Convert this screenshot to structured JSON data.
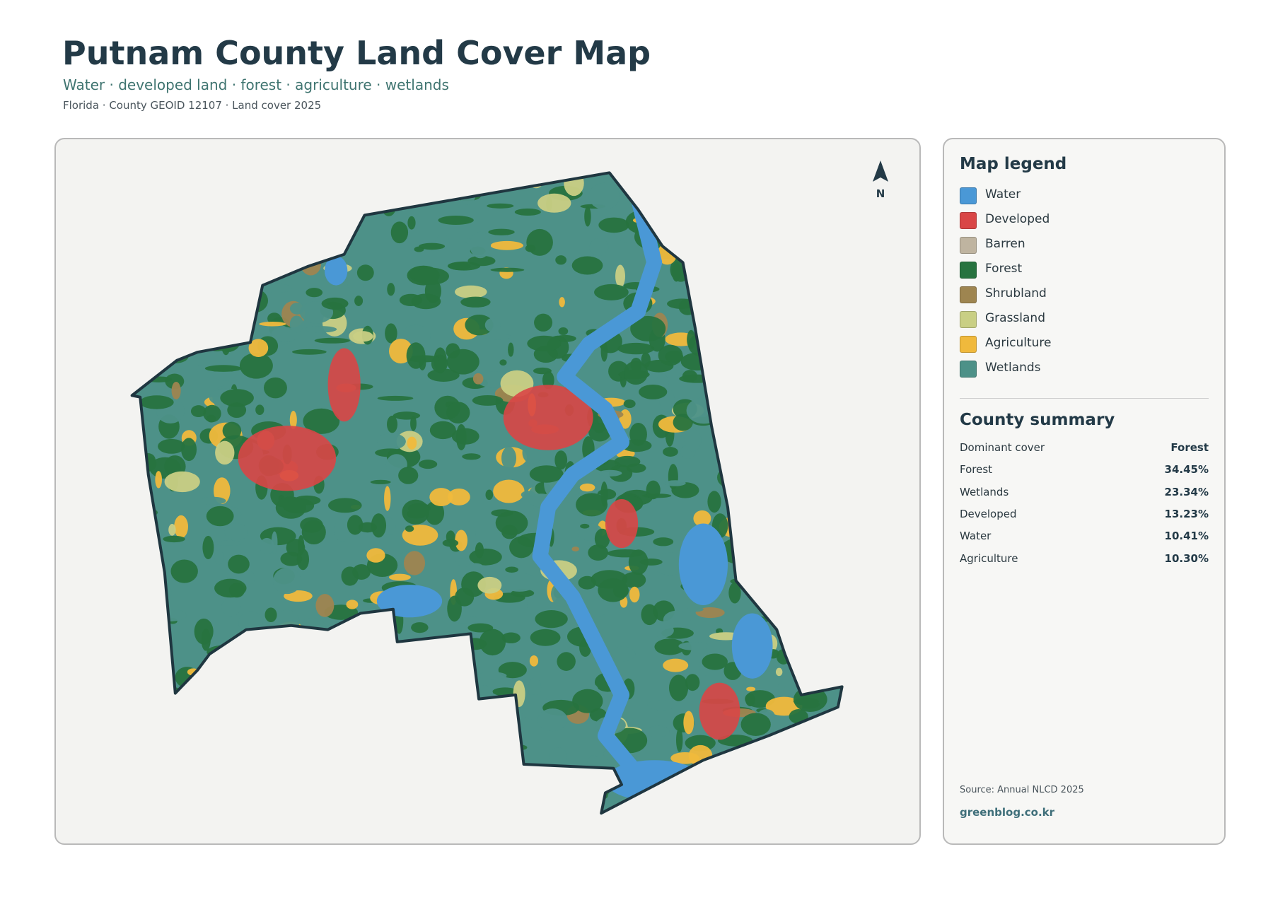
{
  "header": {
    "title": "Putnam County Land Cover Map",
    "subtitle": "Water · developed land · forest · agriculture · wetlands",
    "meta": "Florida · County GEOID 12107 · Land cover 2025"
  },
  "map": {
    "north_label": "N"
  },
  "legend": {
    "title": "Map legend",
    "items": [
      {
        "label": "Water",
        "color": "#4a98d6"
      },
      {
        "label": "Developed",
        "color": "#d94646"
      },
      {
        "label": "Barren",
        "color": "#bfb4a0"
      },
      {
        "label": "Forest",
        "color": "#27733f"
      },
      {
        "label": "Shrubland",
        "color": "#9e8550"
      },
      {
        "label": "Grassland",
        "color": "#c9cf84"
      },
      {
        "label": "Agriculture",
        "color": "#f0b93c"
      },
      {
        "label": "Wetlands",
        "color": "#4d9188"
      }
    ]
  },
  "summary": {
    "title": "County summary",
    "rows": [
      [
        "Dominant cover",
        "Forest"
      ],
      [
        "Forest",
        "34.45%"
      ],
      [
        "Wetlands",
        "23.34%"
      ],
      [
        "Developed",
        "13.23%"
      ],
      [
        "Water",
        "10.41%"
      ],
      [
        "Agriculture",
        "10.30%"
      ]
    ]
  },
  "footer": {
    "source": "Source: Annual NLCD 2025",
    "site": "greenblog.co.kr"
  }
}
